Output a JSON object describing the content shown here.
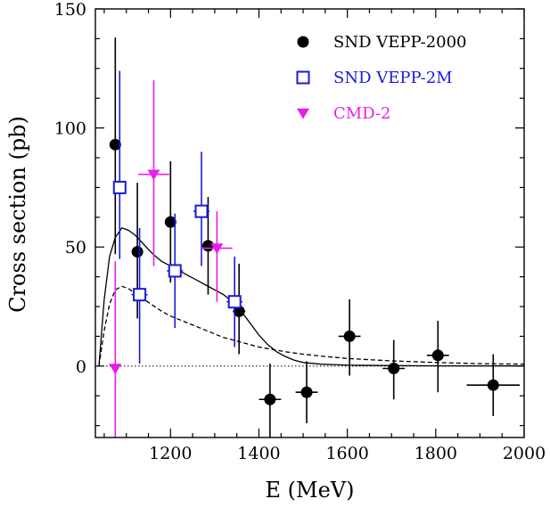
{
  "chart_data": {
    "type": "scatter",
    "xlabel": "E (MeV)",
    "ylabel": "Cross section (pb)",
    "xlim": [
      1030,
      2000
    ],
    "ylim": [
      -30,
      150
    ],
    "x_ticks": [
      1200,
      1400,
      1600,
      1800,
      2000
    ],
    "y_ticks": [
      0,
      50,
      100,
      150
    ],
    "legend_position": "top-right",
    "colors": {
      "snd2000": "#000000",
      "snd2m": "#1a1adc",
      "cmd2": "#e81ee8"
    },
    "series": [
      {
        "name": "SND VEPP-2000",
        "marker": "filled-circle",
        "color": "#000000",
        "points": [
          {
            "x": 1075,
            "y": 93,
            "xerr": 0,
            "ylo": 47,
            "yhi": 138
          },
          {
            "x": 1125,
            "y": 48,
            "xerr": 12,
            "ylo": 20,
            "yhi": 77
          },
          {
            "x": 1200,
            "y": 60.5,
            "xerr": 12,
            "ylo": 35,
            "yhi": 86
          },
          {
            "x": 1285,
            "y": 50.5,
            "xerr": 14,
            "ylo": 30,
            "yhi": 71
          },
          {
            "x": 1355,
            "y": 23,
            "xerr": 14,
            "ylo": 5,
            "yhi": 43
          },
          {
            "x": 1425,
            "y": -14,
            "xerr": 25,
            "ylo": -30,
            "yhi": 1
          },
          {
            "x": 1508,
            "y": -11,
            "xerr": 25,
            "ylo": -24,
            "yhi": 2
          },
          {
            "x": 1605,
            "y": 12.5,
            "xerr": 25,
            "ylo": -4,
            "yhi": 28
          },
          {
            "x": 1705,
            "y": -1,
            "xerr": 25,
            "ylo": -14,
            "yhi": 11
          },
          {
            "x": 1805,
            "y": 4.5,
            "xerr": 25,
            "ylo": -11,
            "yhi": 19
          },
          {
            "x": 1930,
            "y": -8,
            "xerr": 60,
            "ylo": -21,
            "yhi": 5
          }
        ]
      },
      {
        "name": "SND VEPP-2M",
        "marker": "open-square",
        "color": "#1a1adc",
        "points": [
          {
            "x": 1085,
            "y": 75,
            "xerr": 0,
            "ylo": 45,
            "yhi": 124
          },
          {
            "x": 1130,
            "y": 30,
            "xerr": 18,
            "ylo": 1,
            "yhi": 58
          },
          {
            "x": 1210,
            "y": 40,
            "xerr": 18,
            "ylo": 16,
            "yhi": 64
          },
          {
            "x": 1270,
            "y": 65,
            "xerr": 18,
            "ylo": 42,
            "yhi": 90
          },
          {
            "x": 1345,
            "y": 27,
            "xerr": 18,
            "ylo": 8,
            "yhi": 46
          }
        ]
      },
      {
        "name": "CMD-2",
        "marker": "filled-triangle-down",
        "color": "#e81ee8",
        "points": [
          {
            "x": 1075,
            "y": -1,
            "xerr": 0,
            "ylo": -30,
            "yhi": 44
          },
          {
            "x": 1162,
            "y": 80.5,
            "xerr": 35,
            "ylo": 42,
            "yhi": 120
          },
          {
            "x": 1305,
            "y": 49.5,
            "xerr": 35,
            "ylo": 27,
            "yhi": 65
          }
        ]
      }
    ],
    "curves": [
      {
        "style": "solid",
        "points": [
          [
            1038,
            0
          ],
          [
            1050,
            28
          ],
          [
            1062,
            46
          ],
          [
            1075,
            54
          ],
          [
            1090,
            58
          ],
          [
            1105,
            57
          ],
          [
            1120,
            55
          ],
          [
            1140,
            51
          ],
          [
            1160,
            47
          ],
          [
            1180,
            44
          ],
          [
            1200,
            42
          ],
          [
            1220,
            40
          ],
          [
            1240,
            38
          ],
          [
            1260,
            36
          ],
          [
            1280,
            34
          ],
          [
            1300,
            32
          ],
          [
            1320,
            30
          ],
          [
            1340,
            27
          ],
          [
            1360,
            23
          ],
          [
            1380,
            18
          ],
          [
            1400,
            13
          ],
          [
            1420,
            9
          ],
          [
            1440,
            6
          ],
          [
            1460,
            4
          ],
          [
            1480,
            2.5
          ],
          [
            1500,
            1.5
          ],
          [
            1540,
            0.8
          ],
          [
            1600,
            0.4
          ],
          [
            1700,
            0.2
          ],
          [
            1800,
            0.1
          ],
          [
            2000,
            0.05
          ]
        ]
      },
      {
        "style": "dashed",
        "points": [
          [
            1038,
            0
          ],
          [
            1050,
            15
          ],
          [
            1062,
            26
          ],
          [
            1075,
            32
          ],
          [
            1090,
            33.5
          ],
          [
            1105,
            32.5
          ],
          [
            1120,
            30.5
          ],
          [
            1140,
            28
          ],
          [
            1160,
            25.5
          ],
          [
            1180,
            23
          ],
          [
            1200,
            21
          ],
          [
            1220,
            19.5
          ],
          [
            1240,
            18
          ],
          [
            1260,
            16.5
          ],
          [
            1280,
            15
          ],
          [
            1300,
            13.5
          ],
          [
            1320,
            12
          ],
          [
            1340,
            11
          ],
          [
            1360,
            10
          ],
          [
            1380,
            9
          ],
          [
            1400,
            8
          ],
          [
            1430,
            7
          ],
          [
            1460,
            6
          ],
          [
            1500,
            5
          ],
          [
            1550,
            4
          ],
          [
            1600,
            3.2
          ],
          [
            1700,
            2.2
          ],
          [
            1800,
            1.5
          ],
          [
            1900,
            1
          ],
          [
            2000,
            0.8
          ]
        ]
      }
    ]
  }
}
